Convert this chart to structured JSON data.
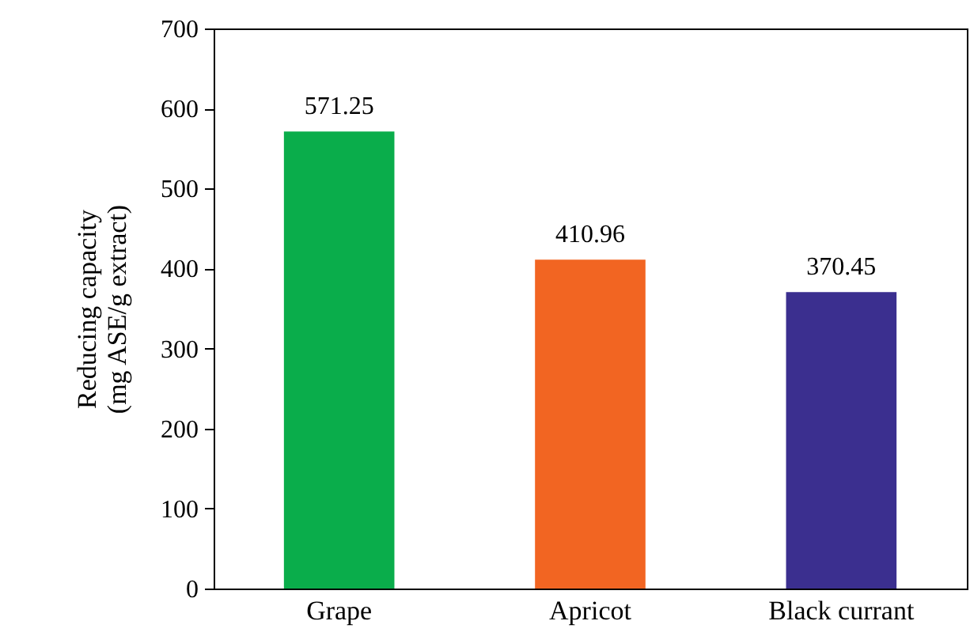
{
  "chart_data": {
    "type": "bar",
    "ylabel": "Reducing capacity\n(mg ASE/g extract)",
    "categories": [
      "Grape",
      "Apricot",
      "Black currant"
    ],
    "values": [
      571.25,
      410.96,
      370.45
    ],
    "colors": [
      "#0aad4b",
      "#f26522",
      "#3b2f8f"
    ],
    "ylim": [
      0,
      700
    ],
    "yticks": [
      0,
      100,
      200,
      300,
      400,
      500,
      600,
      700
    ],
    "data_labels": true,
    "grid": false
  }
}
